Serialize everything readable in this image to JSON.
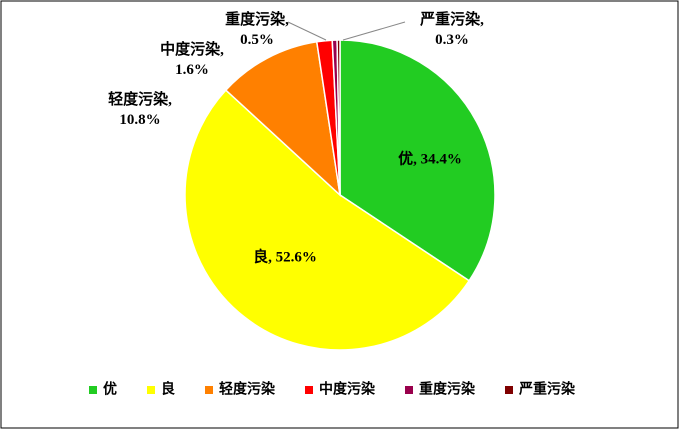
{
  "chart_data": {
    "type": "pie",
    "categories": [
      "优",
      "良",
      "轻度污染",
      "中度污染",
      "重度污染",
      "严重污染"
    ],
    "values": [
      34.4,
      52.6,
      10.8,
      1.6,
      0.5,
      0.3
    ],
    "value_labels": [
      "优, 34.4%",
      "良, 52.6%",
      "轻度污染, 10.8%",
      "中度污染, 1.6%",
      "重度污染, 0.5%",
      "严重污染, 0.3%"
    ],
    "colors": [
      "#22cc22",
      "#ffff00",
      "#ff8000",
      "#ff0000",
      "#99004c",
      "#7f0000"
    ],
    "legend": "bottom"
  }
}
